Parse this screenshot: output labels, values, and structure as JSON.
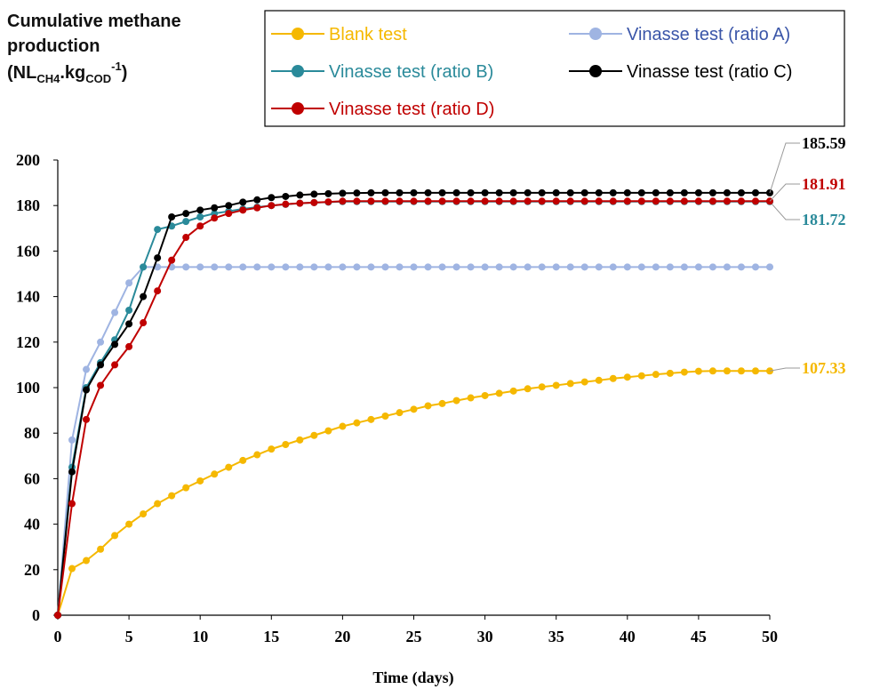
{
  "chart_data": {
    "type": "line",
    "title": [
      "Cumulative methane",
      "production"
    ],
    "unit": [
      "(NL",
      "CH4",
      ".kg",
      "COD",
      "-1",
      ")"
    ],
    "x_label": "Time (days)",
    "x": [
      0,
      1,
      2,
      3,
      4,
      5,
      6,
      7,
      8,
      9,
      10,
      11,
      12,
      13,
      14,
      15,
      16,
      17,
      18,
      19,
      20,
      21,
      22,
      23,
      24,
      25,
      26,
      27,
      28,
      29,
      30,
      31,
      32,
      33,
      34,
      35,
      36,
      37,
      38,
      39,
      40,
      41,
      42,
      43,
      44,
      45,
      46,
      47,
      48,
      49,
      50
    ],
    "xlim": [
      0,
      50
    ],
    "xticks": [
      0,
      5,
      10,
      15,
      20,
      25,
      30,
      35,
      40,
      45,
      50
    ],
    "ylim": [
      0,
      200
    ],
    "yticks": [
      0,
      20,
      40,
      60,
      80,
      100,
      120,
      140,
      160,
      180,
      200
    ],
    "grid": false,
    "series": [
      {
        "name": "Blank test",
        "color": "#f5b800",
        "text_color": "#f5b800",
        "values": [
          0,
          20.5,
          24,
          29,
          35,
          40,
          44.5,
          49,
          52.5,
          56,
          59,
          62,
          65,
          68,
          70.5,
          73,
          75,
          77,
          79,
          81,
          83,
          84.5,
          86,
          87.5,
          89,
          90.5,
          92,
          93,
          94.3,
          95.5,
          96.5,
          97.5,
          98.5,
          99.5,
          100.3,
          101,
          101.8,
          102.5,
          103.2,
          104,
          104.6,
          105.2,
          105.8,
          106.3,
          106.8,
          107.2,
          107.3,
          107.33,
          107.33,
          107.33,
          107.33
        ]
      },
      {
        "name": "Vinasse test (ratio A)",
        "color": "#9fb4e2",
        "text_color": "#3a55a8",
        "values": [
          0,
          77,
          108,
          120,
          133,
          146,
          153,
          153,
          153,
          153,
          153,
          153,
          153,
          153,
          153,
          153,
          153,
          153,
          153,
          153,
          153,
          153,
          153,
          153,
          153,
          153,
          153,
          153,
          153,
          153,
          153,
          153,
          153,
          153,
          153,
          153,
          153,
          153,
          153,
          153,
          153,
          153,
          153,
          153,
          153,
          153,
          153,
          153,
          153,
          153,
          153
        ]
      },
      {
        "name": "Vinasse test (ratio B)",
        "color": "#2a8a9a",
        "text_color": "#2a8a9a",
        "values": [
          0,
          65,
          100,
          111,
          121,
          134,
          153,
          169.5,
          171,
          173,
          175,
          176.5,
          177.5,
          178.5,
          179.3,
          180,
          180.5,
          181,
          181.3,
          181.5,
          181.72,
          181.72,
          181.72,
          181.72,
          181.72,
          181.72,
          181.72,
          181.72,
          181.72,
          181.72,
          181.72,
          181.72,
          181.72,
          181.72,
          181.72,
          181.72,
          181.72,
          181.72,
          181.72,
          181.72,
          181.72,
          181.72,
          181.72,
          181.72,
          181.72,
          181.72,
          181.72,
          181.72,
          181.72,
          181.72,
          181.72
        ]
      },
      {
        "name": "Vinasse test (ratio C)",
        "color": "#000000",
        "text_color": "#000000",
        "values": [
          0,
          63,
          99,
          110,
          119,
          128,
          140,
          157,
          175,
          176.5,
          178,
          179,
          180,
          181.5,
          182.5,
          183.5,
          184,
          184.6,
          185,
          185.2,
          185.4,
          185.5,
          185.59,
          185.59,
          185.59,
          185.59,
          185.59,
          185.59,
          185.59,
          185.59,
          185.59,
          185.59,
          185.59,
          185.59,
          185.59,
          185.59,
          185.59,
          185.59,
          185.59,
          185.59,
          185.59,
          185.59,
          185.59,
          185.59,
          185.59,
          185.59,
          185.59,
          185.59,
          185.59,
          185.59,
          185.59
        ]
      },
      {
        "name": "Vinasse test (ratio D)",
        "color": "#c00000",
        "text_color": "#c00000",
        "values": [
          0,
          49,
          86,
          101,
          110,
          118,
          128.5,
          142.5,
          156,
          166,
          171,
          174.5,
          176.5,
          178,
          179,
          180,
          180.6,
          181,
          181.3,
          181.6,
          181.91,
          181.91,
          181.91,
          181.91,
          181.91,
          181.91,
          181.91,
          181.91,
          181.91,
          181.91,
          181.91,
          181.91,
          181.91,
          181.91,
          181.91,
          181.91,
          181.91,
          181.91,
          181.91,
          181.91,
          181.91,
          181.91,
          181.91,
          181.91,
          181.91,
          181.91,
          181.91,
          181.91,
          181.91,
          181.91,
          181.91
        ]
      }
    ]
  }
}
